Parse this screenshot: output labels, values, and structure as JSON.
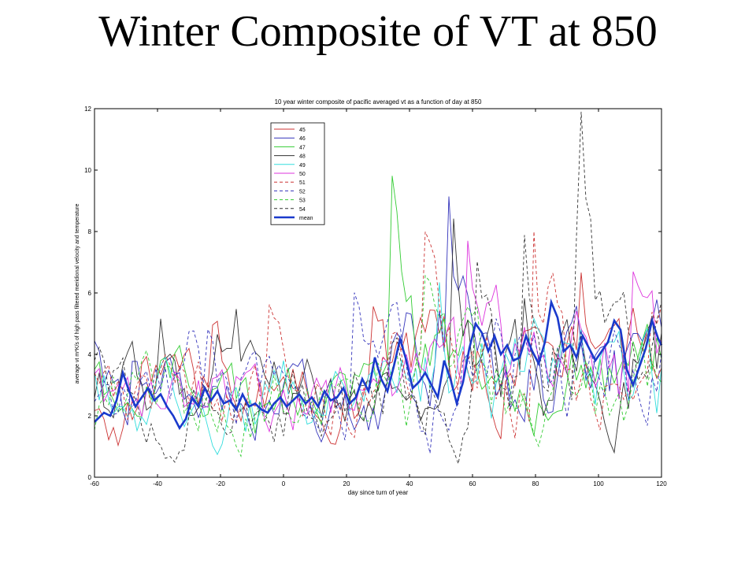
{
  "slide": {
    "title": "Winter Composite of VT at 850"
  },
  "chart_data": {
    "type": "line",
    "title": "10 year winter composite of pacific averaged vt as a function of day at 850",
    "xlabel": "day since turn of year",
    "ylabel": "average vt m*K/s of high pass filtered meridional velocity and temperature",
    "xlim": [
      -60,
      120
    ],
    "ylim": [
      0,
      12
    ],
    "xticks": [
      -60,
      -40,
      -20,
      0,
      20,
      40,
      60,
      80,
      100,
      120
    ],
    "yticks": [
      0,
      2,
      4,
      6,
      8,
      10,
      12
    ],
    "legend_position": "top-left",
    "grid": false,
    "series": [
      {
        "name": "45",
        "color": "#cc3333",
        "style": "solid"
      },
      {
        "name": "46",
        "color": "#3333bb",
        "style": "solid"
      },
      {
        "name": "47",
        "color": "#33cc33",
        "style": "solid"
      },
      {
        "name": "48",
        "color": "#333333",
        "style": "solid"
      },
      {
        "name": "49",
        "color": "#33dddd",
        "style": "solid"
      },
      {
        "name": "50",
        "color": "#dd33dd",
        "style": "solid"
      },
      {
        "name": "51",
        "color": "#cc3333",
        "style": "dashed"
      },
      {
        "name": "52",
        "color": "#3333bb",
        "style": "dashed"
      },
      {
        "name": "53",
        "color": "#33cc33",
        "style": "dashed"
      },
      {
        "name": "54",
        "color": "#333333",
        "style": "dashed"
      },
      {
        "name": "mean",
        "color": "#1a3acc",
        "style": "bold",
        "x": [
          -60,
          -57,
          -55,
          -53,
          -51,
          -49,
          -47,
          -45,
          -43,
          -41,
          -39,
          -37,
          -35,
          -33,
          -31,
          -29,
          -27,
          -25,
          -23,
          -21,
          -19,
          -17,
          -15,
          -13,
          -11,
          -9,
          -7,
          -5,
          -3,
          -1,
          1,
          3,
          5,
          7,
          9,
          11,
          13,
          15,
          17,
          19,
          21,
          23,
          25,
          27,
          29,
          31,
          33,
          35,
          37,
          39,
          41,
          43,
          45,
          47,
          49,
          51,
          53,
          55,
          57,
          59,
          61,
          63,
          65,
          67,
          69,
          71,
          73,
          75,
          77,
          79,
          81,
          83,
          85,
          87,
          89,
          91,
          93,
          95,
          97,
          99,
          101,
          103,
          105,
          107,
          109,
          111,
          113,
          115,
          117,
          119,
          120
        ],
        "y": [
          1.8,
          2.1,
          2.0,
          2.5,
          3.4,
          2.8,
          2.3,
          2.6,
          2.9,
          2.5,
          2.7,
          2.3,
          2.0,
          1.6,
          1.9,
          2.6,
          2.3,
          2.9,
          2.5,
          2.8,
          2.4,
          2.5,
          2.2,
          2.7,
          2.3,
          2.4,
          2.2,
          2.1,
          2.4,
          2.6,
          2.3,
          2.5,
          2.7,
          2.4,
          2.6,
          2.3,
          2.8,
          2.5,
          2.6,
          2.9,
          2.4,
          2.6,
          3.2,
          2.8,
          3.9,
          3.2,
          2.8,
          3.6,
          4.5,
          3.8,
          2.9,
          3.1,
          3.4,
          3.0,
          2.6,
          3.8,
          3.2,
          2.4,
          3.1,
          4.2,
          5.0,
          4.7,
          4.1,
          4.6,
          4.0,
          4.3,
          3.8,
          3.9,
          4.6,
          4.1,
          3.7,
          4.4,
          5.7,
          5.2,
          4.1,
          4.3,
          3.9,
          4.6,
          4.2,
          3.8,
          4.1,
          4.4,
          5.1,
          4.8,
          3.5,
          3.0,
          3.6,
          4.2,
          5.1,
          4.5,
          4.3
        ]
      }
    ]
  }
}
